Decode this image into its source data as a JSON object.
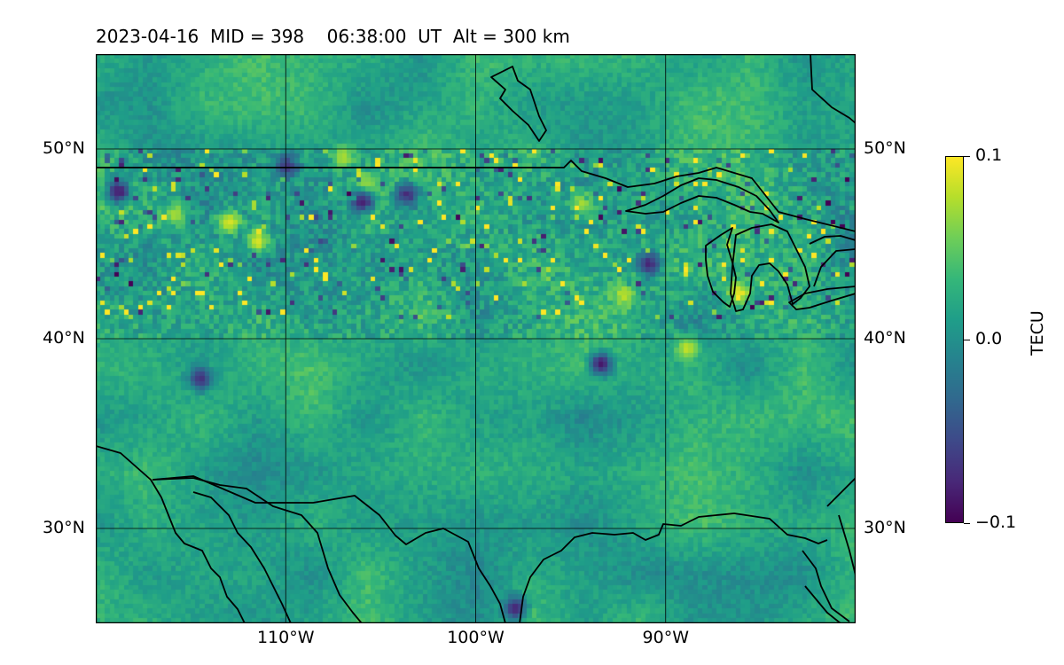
{
  "title": {
    "date": "2023-04-16",
    "mid": "MID = 398",
    "time": "06:38:00",
    "time_zone": "UT",
    "altitude": "Alt = 300 km"
  },
  "map": {
    "projection": "equirectangular",
    "lon_range": [
      -120,
      -80
    ],
    "lat_range": [
      25,
      55
    ],
    "gridlines": true,
    "lat_ticks": [
      {
        "value": 30,
        "label": "30°N"
      },
      {
        "value": 40,
        "label": "40°N"
      },
      {
        "value": 50,
        "label": "50°N"
      }
    ],
    "lon_ticks": [
      {
        "value": -110,
        "label": "110°W"
      },
      {
        "value": -100,
        "label": "100°W"
      },
      {
        "value": -90,
        "label": "90°W"
      }
    ],
    "features": [
      "coastlines",
      "US-Canada border",
      "Great Lakes",
      "Gulf of Mexico coast",
      "Baja California",
      "Hudson Bay islands"
    ],
    "field": "differential TEC, gridded, viridis colormap",
    "hotspots": [
      {
        "lon": -113,
        "lat": 46.2,
        "value": 0.1
      },
      {
        "lon": -111.5,
        "lat": 45.2,
        "value": 0.1
      },
      {
        "lon": -105.8,
        "lat": 48.1,
        "value": 0.09
      },
      {
        "lon": -115.8,
        "lat": 46.6,
        "value": 0.08
      },
      {
        "lon": -89,
        "lat": 39.6,
        "value": 0.09
      },
      {
        "lon": -92.3,
        "lat": 42.4,
        "value": 0.09
      },
      {
        "lon": -86.3,
        "lat": 42.5,
        "value": 0.1
      },
      {
        "lon": -94.5,
        "lat": 47.2,
        "value": 0.08
      },
      {
        "lon": -107,
        "lat": 49.6,
        "value": 0.08
      }
    ],
    "coldspots": [
      {
        "lon": -118.8,
        "lat": 47.8,
        "value": -0.1
      },
      {
        "lon": -106,
        "lat": 47.3,
        "value": -0.1
      },
      {
        "lon": -103.7,
        "lat": 47.6,
        "value": -0.09
      },
      {
        "lon": -110,
        "lat": 49.1,
        "value": -0.08
      },
      {
        "lon": -91,
        "lat": 44,
        "value": -0.09
      },
      {
        "lon": -93.5,
        "lat": 38.8,
        "value": -0.1
      },
      {
        "lon": -98,
        "lat": 26,
        "value": -0.09
      },
      {
        "lon": -114.5,
        "lat": 38,
        "value": -0.08
      }
    ]
  },
  "colorbar": {
    "label": "TECU",
    "colormap": "viridis",
    "min": -0.1,
    "max": 0.1,
    "ticks": [
      {
        "value": 0.1,
        "label": "0.1"
      },
      {
        "value": 0.0,
        "label": "0.0"
      },
      {
        "value": -0.1,
        "label": "−0.1"
      }
    ],
    "colors": [
      "#440154",
      "#482878",
      "#3e4989",
      "#31688e",
      "#26828e",
      "#1f9e89",
      "#35b779",
      "#6ece58",
      "#b5de2b",
      "#fde725"
    ]
  }
}
